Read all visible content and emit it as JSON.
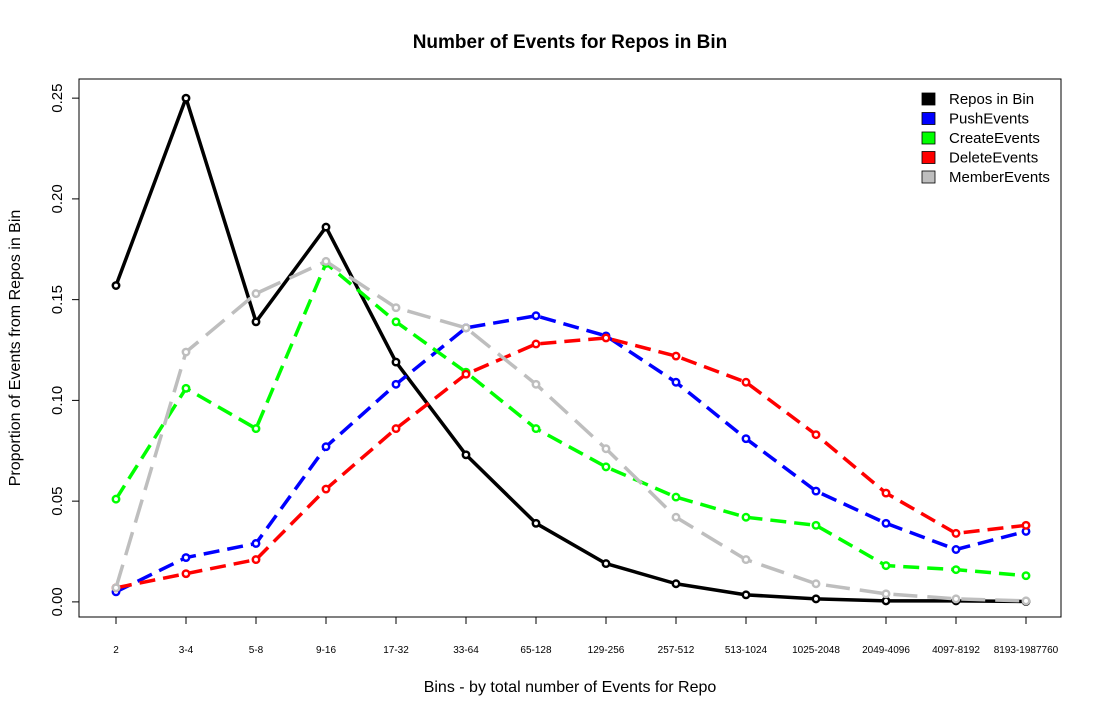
{
  "chart_data": {
    "type": "line",
    "title": "Number of Events for Repos in Bin",
    "xlabel": "Bins - by total number of Events for Repo",
    "ylabel": "Proportion of Events from Repos in Bin",
    "ylim": [
      -0.0075,
      0.2595
    ],
    "yticks": [
      "0.00",
      "0.05",
      "0.10",
      "0.15",
      "0.20",
      "0.25"
    ],
    "grid": false,
    "legend_position": "top-right",
    "categories": [
      "2",
      "3-4",
      "5-8",
      "9-16",
      "17-32",
      "33-64",
      "65-128",
      "129-256",
      "257-512",
      "513-1024",
      "1025-2048",
      "2049-4096",
      "4097-8192",
      "8193-1987760"
    ],
    "series": [
      {
        "name": "Repos in Bin",
        "color": "#000000",
        "dash": "solid",
        "values": [
          0.157,
          0.25,
          0.139,
          0.186,
          0.119,
          0.073,
          0.039,
          0.019,
          0.009,
          0.0035,
          0.0015,
          0.0005,
          0.0005,
          0.0002
        ]
      },
      {
        "name": "PushEvents",
        "color": "#0000ff",
        "dash": "dashed",
        "values": [
          0.005,
          0.022,
          0.029,
          0.077,
          0.108,
          0.136,
          0.142,
          0.132,
          0.109,
          0.081,
          0.055,
          0.039,
          0.026,
          0.035
        ]
      },
      {
        "name": "CreateEvents",
        "color": "#00ff00",
        "dash": "dashed",
        "values": [
          0.051,
          0.106,
          0.086,
          0.168,
          0.139,
          0.114,
          0.086,
          0.067,
          0.052,
          0.042,
          0.038,
          0.018,
          0.016,
          0.013
        ]
      },
      {
        "name": "DeleteEvents",
        "color": "#ff0000",
        "dash": "dashed",
        "values": [
          0.007,
          0.014,
          0.021,
          0.056,
          0.086,
          0.113,
          0.128,
          0.131,
          0.122,
          0.109,
          0.083,
          0.054,
          0.034,
          0.038
        ]
      },
      {
        "name": "MemberEvents",
        "color": "#bebebe",
        "dash": "longdash",
        "values": [
          0.007,
          0.124,
          0.153,
          0.169,
          0.146,
          0.136,
          0.108,
          0.076,
          0.042,
          0.021,
          0.009,
          0.004,
          0.0015,
          0.0005
        ]
      }
    ]
  }
}
